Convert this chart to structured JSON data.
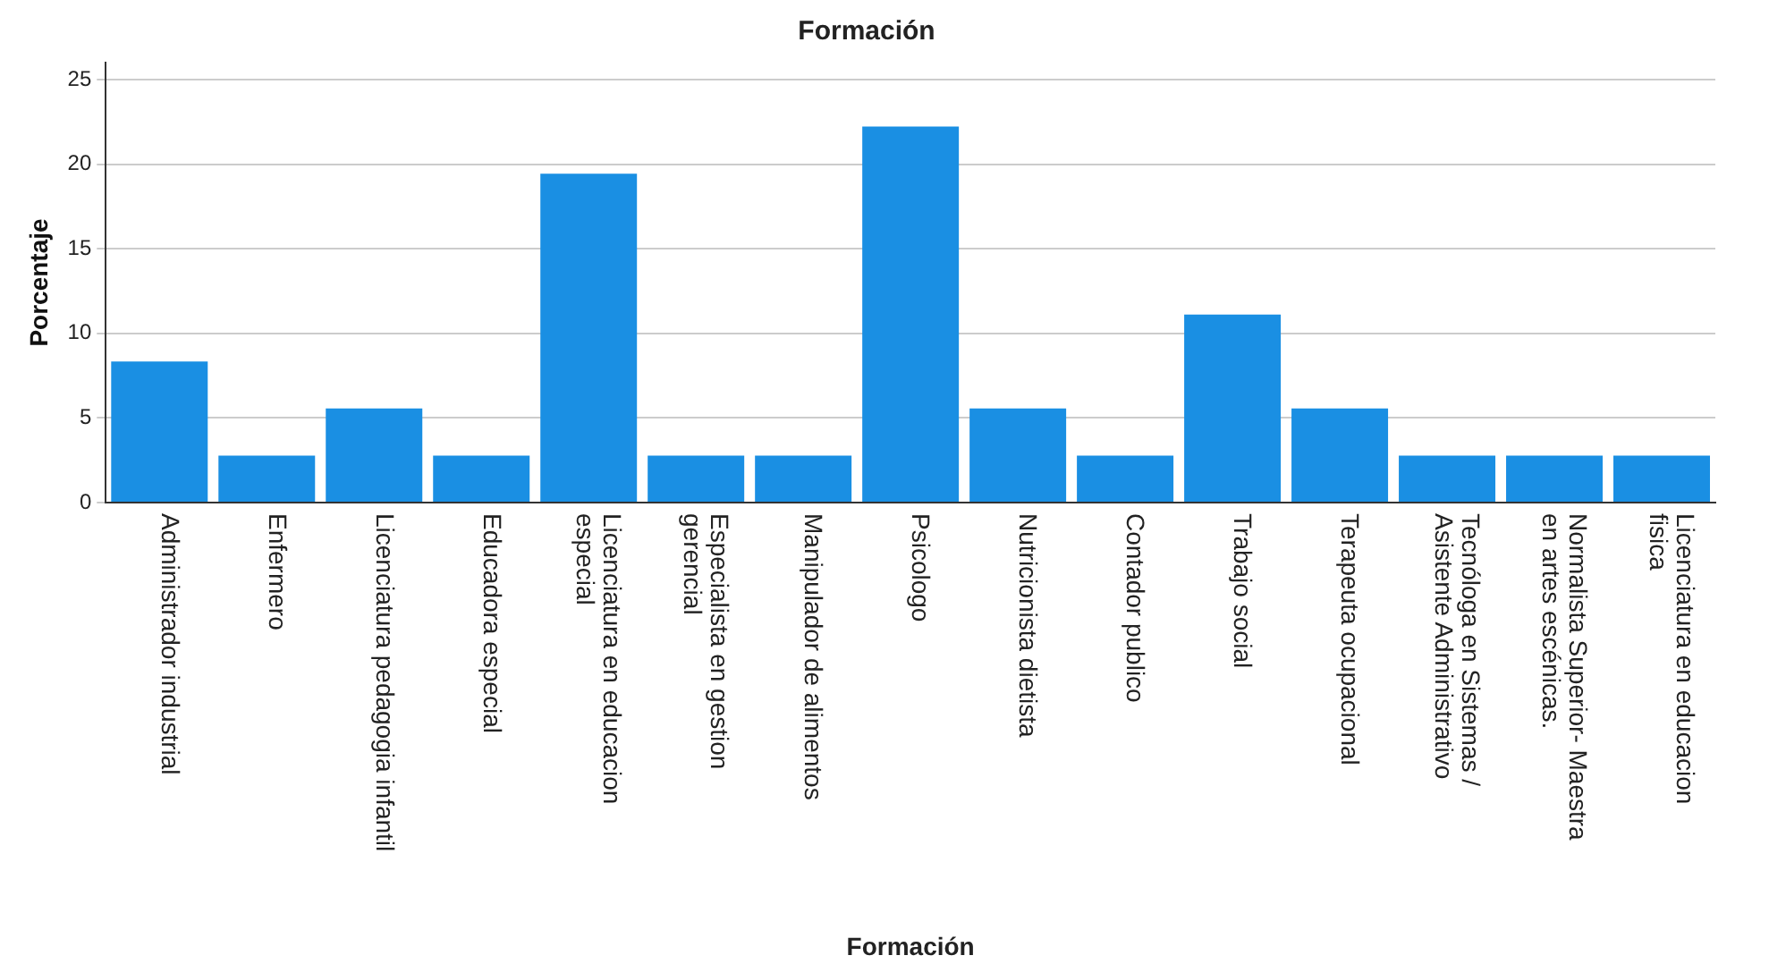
{
  "chart_data": {
    "type": "bar",
    "title": "Formación",
    "xlabel": "Formación",
    "ylabel": "Porcentaje",
    "categories": [
      "Administrador industrial",
      "Enfermero",
      "Licenciatura pedagogia infantil",
      "Educadora especial",
      "Licenciatura en educacion especial",
      "Especialista en gestion gerencial",
      "Manipulador de alimentos",
      "Psicologo",
      "Nutricionista dietista",
      "Contador publico",
      "Trabajo social",
      "Terapeuta ocupacional",
      "Tecnóloga en Sistemas / Asistente Administrativo",
      "Normalista Superior- Maestra en artes escénicas.",
      "Licenciatura en educacion fisica"
    ],
    "values": [
      8.33,
      2.78,
      5.56,
      2.78,
      19.44,
      2.78,
      2.78,
      22.22,
      5.56,
      2.78,
      11.11,
      5.56,
      2.78,
      2.78,
      2.78
    ],
    "color": "#1a8fe3",
    "ylim": [
      0,
      26
    ],
    "yticks": [
      0,
      5,
      10,
      15,
      20,
      25
    ],
    "grid": "y",
    "legend": false
  }
}
